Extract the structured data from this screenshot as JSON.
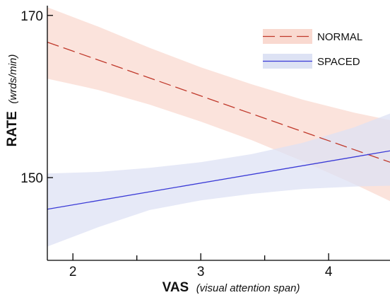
{
  "chart_data": {
    "type": "line",
    "xlabel": {
      "main": "VAS",
      "sub": "(visual attention span)"
    },
    "ylabel": {
      "main": "RATE",
      "sub": "(wrds/min)"
    },
    "xlim": [
      1.8,
      4.48
    ],
    "ylim": [
      139.8,
      171.2
    ],
    "xticks": {
      "major": [
        2,
        3,
        4
      ],
      "minor": [
        2.5,
        3.5
      ]
    },
    "xtick_labels": [
      "2",
      "3",
      "4"
    ],
    "yticks": [
      150,
      170
    ],
    "ytick_labels": [
      "150",
      "170"
    ],
    "grid": false,
    "legend": {
      "position": "top-right"
    },
    "series": [
      {
        "name": "NORMAL",
        "line_color": "#c0392b",
        "band_color": "#f9d9d0",
        "dash": "dashed",
        "x": [
          1.8,
          4.48
        ],
        "y": [
          166.7,
          151.9
        ],
        "ci_upper": [
          [
            1.8,
            171.0
          ],
          [
            2.2,
            168.6
          ],
          [
            2.6,
            166.0
          ],
          [
            3.0,
            163.6
          ],
          [
            3.4,
            161.5
          ],
          [
            3.8,
            159.6
          ],
          [
            4.2,
            158.0
          ],
          [
            4.48,
            157.1
          ]
        ],
        "ci_lower": [
          [
            1.8,
            162.2
          ],
          [
            2.2,
            160.8
          ],
          [
            2.6,
            159.0
          ],
          [
            3.0,
            156.9
          ],
          [
            3.4,
            154.6
          ],
          [
            3.8,
            152.0
          ],
          [
            4.2,
            149.2
          ],
          [
            4.48,
            147.1
          ]
        ]
      },
      {
        "name": "SPACED",
        "line_color": "#3a3ad6",
        "band_color": "#dde2f4",
        "dash": "solid",
        "x": [
          1.8,
          4.48
        ],
        "y": [
          146.1,
          153.3
        ],
        "ci_upper": [
          [
            1.8,
            150.5
          ],
          [
            2.2,
            150.7
          ],
          [
            2.6,
            151.2
          ],
          [
            3.0,
            151.9
          ],
          [
            3.4,
            152.9
          ],
          [
            3.8,
            154.3
          ],
          [
            4.2,
            156.2
          ],
          [
            4.48,
            157.9
          ]
        ],
        "ci_lower": [
          [
            1.8,
            141.5
          ],
          [
            2.2,
            143.9
          ],
          [
            2.6,
            146.0
          ],
          [
            3.0,
            147.2
          ],
          [
            3.4,
            148.0
          ],
          [
            3.8,
            148.6
          ],
          [
            4.2,
            148.9
          ],
          [
            4.48,
            149.0
          ]
        ]
      }
    ]
  }
}
